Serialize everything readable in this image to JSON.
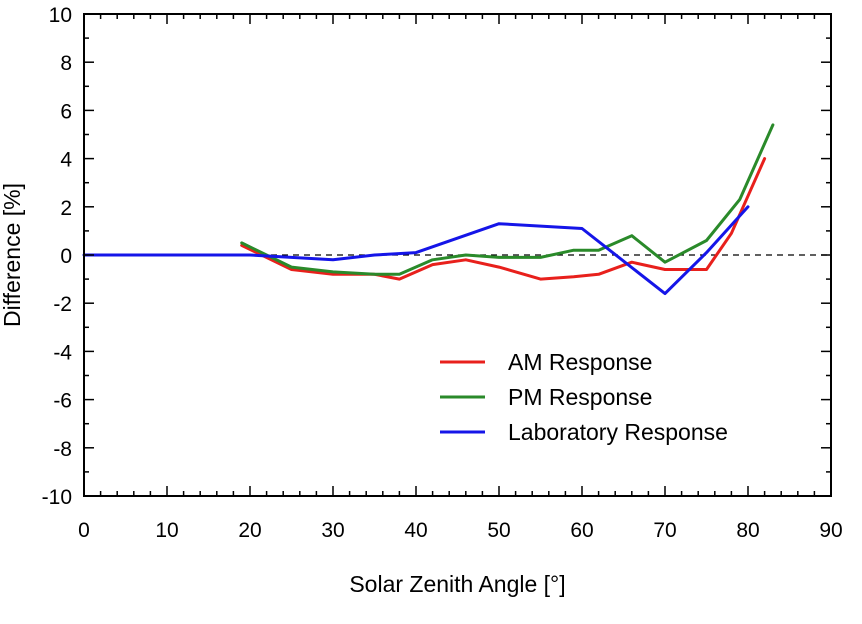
{
  "chart_data": {
    "type": "line",
    "title": "",
    "xlabel": "Solar Zenith Angle [°]",
    "ylabel": "Difference [%]",
    "xlim": [
      0,
      90
    ],
    "ylim": [
      -10,
      10
    ],
    "xticks": [
      0,
      10,
      20,
      30,
      40,
      50,
      60,
      70,
      80,
      90
    ],
    "yticks": [
      -10,
      -8,
      -6,
      -4,
      -2,
      0,
      2,
      4,
      6,
      8,
      10
    ],
    "grid": false,
    "legend_position": "bottom-right",
    "reference_line": {
      "y": 0,
      "style": "dashed",
      "color": "#000000"
    },
    "series": [
      {
        "name": "AM Response",
        "color": "#e8201c",
        "x": [
          19,
          25,
          30,
          35,
          38,
          42,
          46,
          50,
          55,
          59,
          62,
          66,
          70,
          75,
          78,
          82
        ],
        "y": [
          0.4,
          -0.6,
          -0.8,
          -0.8,
          -1.0,
          -0.4,
          -0.2,
          -0.5,
          -1.0,
          -0.9,
          -0.8,
          -0.3,
          -0.6,
          -0.6,
          0.9,
          4.0
        ]
      },
      {
        "name": "PM Response",
        "color": "#2a8a2a",
        "x": [
          19,
          25,
          30,
          35,
          38,
          42,
          46,
          50,
          55,
          59,
          62,
          66,
          70,
          75,
          79,
          83
        ],
        "y": [
          0.5,
          -0.5,
          -0.7,
          -0.8,
          -0.8,
          -0.2,
          0.0,
          -0.1,
          -0.1,
          0.2,
          0.2,
          0.8,
          -0.3,
          0.6,
          2.3,
          5.4
        ]
      },
      {
        "name": "Laboratory Response",
        "color": "#1515e8",
        "x": [
          0,
          20,
          25,
          30,
          35,
          40,
          50,
          60,
          70,
          75,
          80
        ],
        "y": [
          0.0,
          0.0,
          -0.1,
          -0.2,
          0.0,
          0.1,
          1.3,
          1.1,
          -1.6,
          0.1,
          2.0
        ]
      }
    ]
  }
}
